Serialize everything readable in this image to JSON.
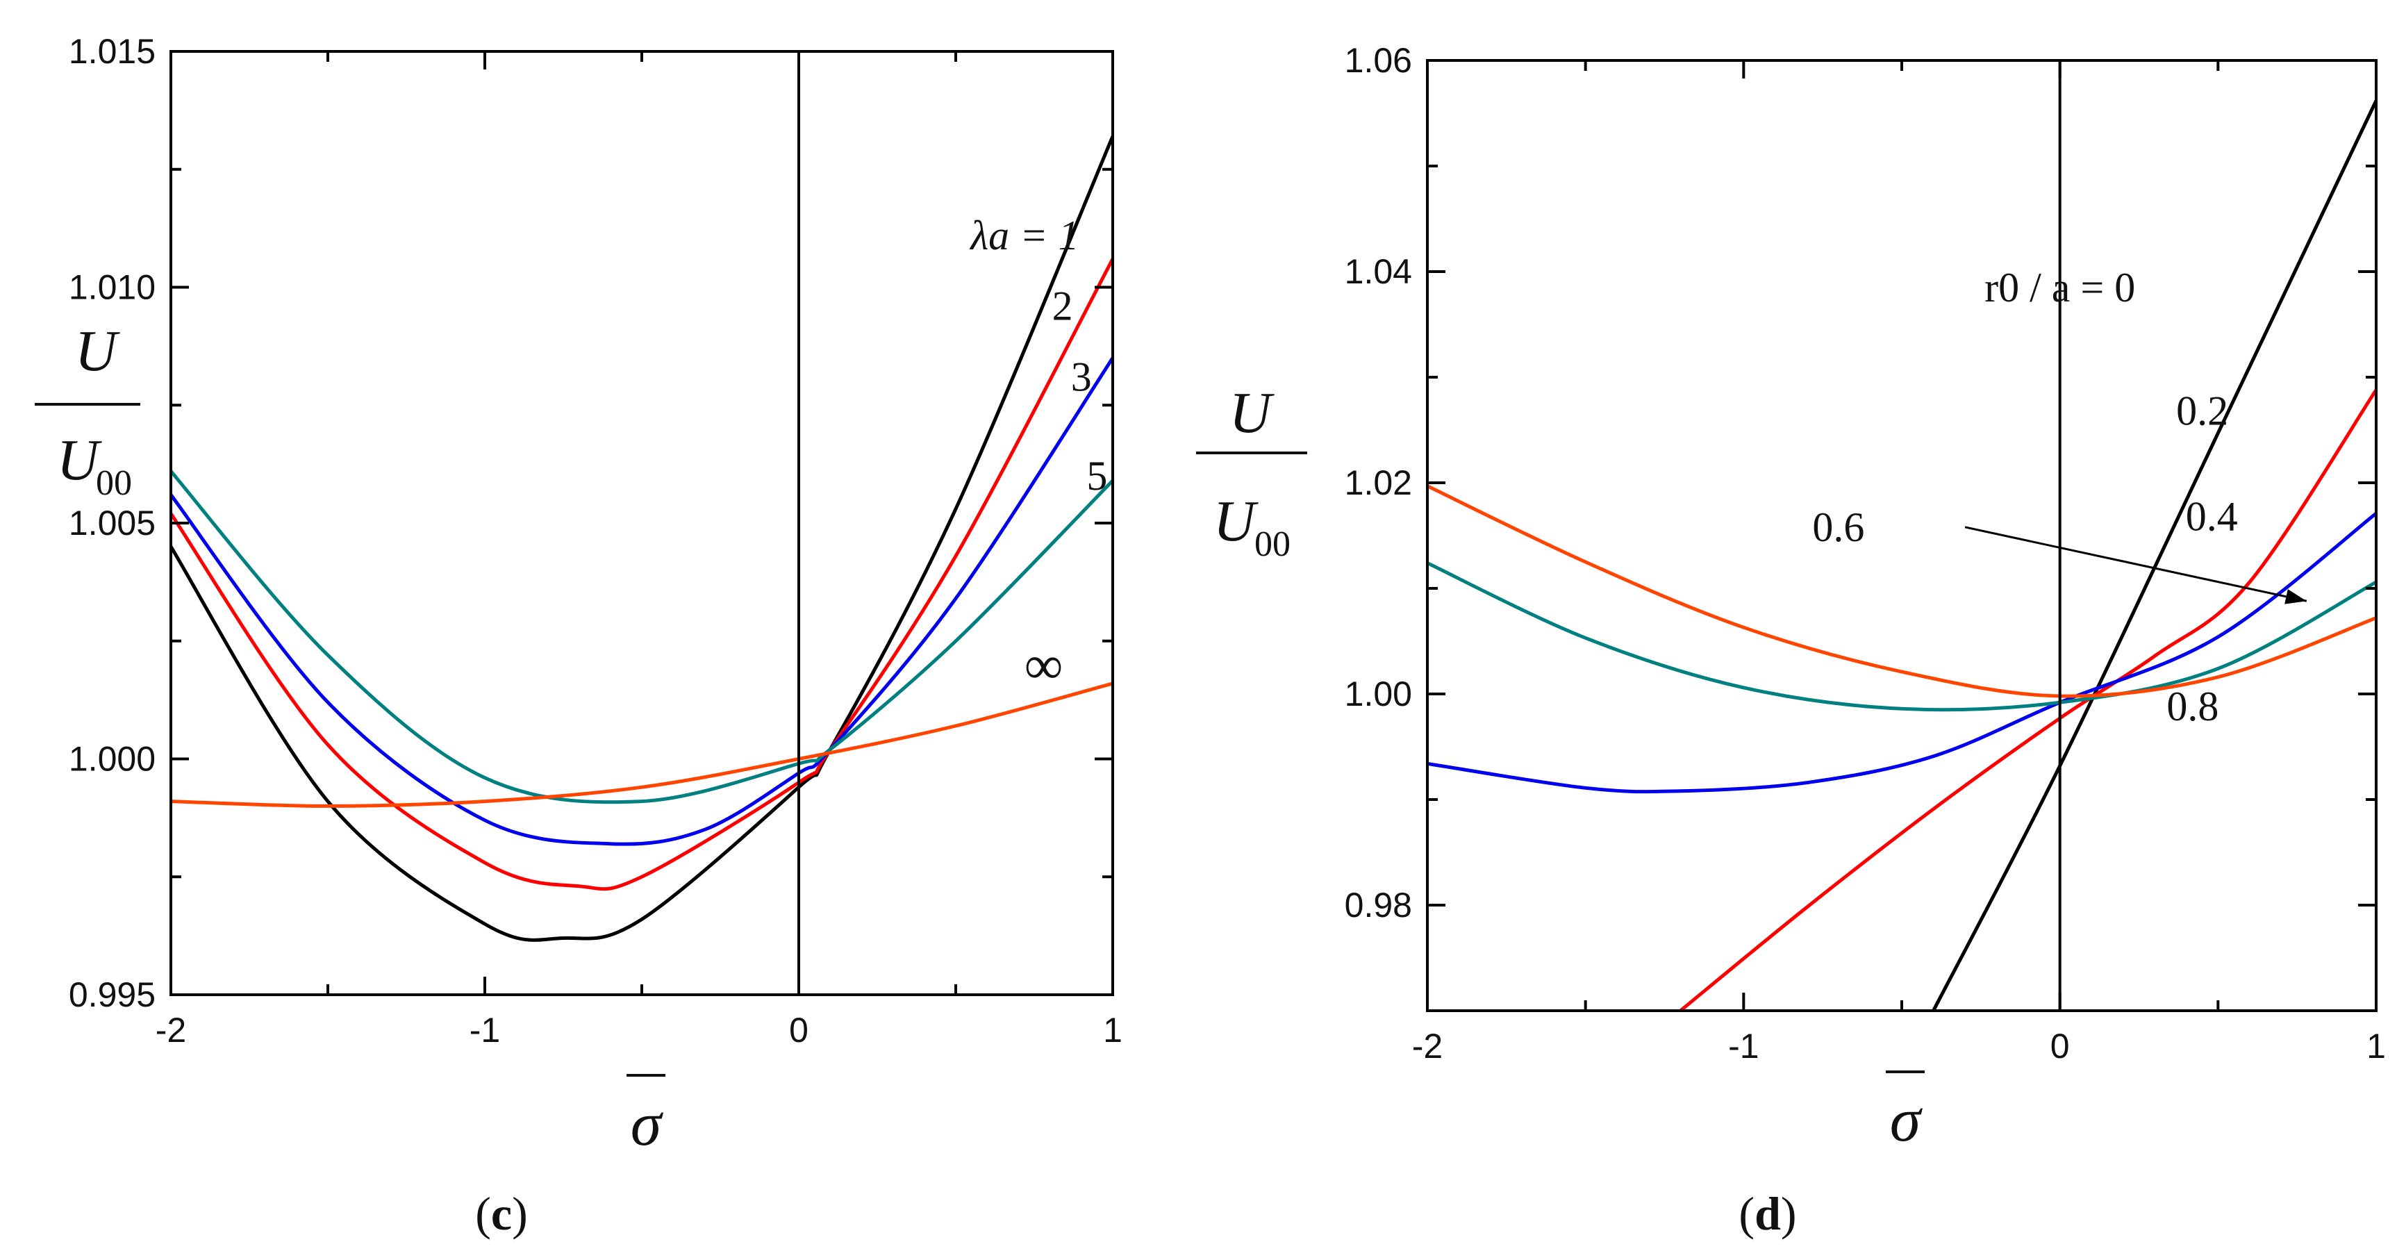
{
  "chart_data": [
    {
      "type": "line",
      "panel_label": "(c)",
      "panel_letter": "c",
      "ylabel_top": "U",
      "ylabel_bottom": "U",
      "ylabel_sub": "00",
      "xlabel": "σ",
      "xlim": [
        -2,
        1
      ],
      "ylim": [
        0.995,
        1.015
      ],
      "xticks": [
        -2,
        -1,
        0,
        1
      ],
      "xtick_labels": [
        "-2",
        "-1",
        "0",
        "1"
      ],
      "yticks": [
        0.995,
        1.0,
        1.005,
        1.01,
        1.015
      ],
      "ytick_labels": [
        "0.995",
        "1.000",
        "1.005",
        "1.010",
        "1.015"
      ],
      "series": [
        {
          "name": "λa = 1",
          "color": "#000000",
          "x": [
            -2.0,
            -1.5,
            -1.0,
            -0.75,
            -0.5,
            0.0,
            0.1,
            0.5,
            1.0
          ],
          "y": [
            1.0045,
            0.9991,
            0.9965,
            0.9962,
            0.9966,
            0.9994,
            1.0002,
            1.0053,
            1.0132
          ]
        },
        {
          "name": "2",
          "color": "#ff0000",
          "x": [
            -2.0,
            -1.5,
            -1.0,
            -0.7,
            -0.5,
            0.0,
            0.1,
            0.5,
            1.0
          ],
          "y": [
            1.0052,
            1.0003,
            0.9978,
            0.9973,
            0.9975,
            0.9995,
            1.0002,
            1.0043,
            1.0106
          ]
        },
        {
          "name": "3",
          "color": "#0000ee",
          "x": [
            -2.0,
            -1.5,
            -1.0,
            -0.6,
            -0.3,
            0.0,
            0.1,
            0.5,
            1.0
          ],
          "y": [
            1.0056,
            1.0012,
            0.9987,
            0.9982,
            0.9985,
            0.9997,
            1.0002,
            1.0034,
            1.0085
          ]
        },
        {
          "name": "5",
          "color": "#008080",
          "x": [
            -2.0,
            -1.5,
            -1.0,
            -0.5,
            0.0,
            0.1,
            0.5,
            1.0
          ],
          "y": [
            1.0061,
            1.0022,
            0.9996,
            0.9991,
            0.9999,
            1.0002,
            1.0025,
            1.0059
          ]
        },
        {
          "name": "∞",
          "color": "#ff4500",
          "x": [
            -2.0,
            -1.5,
            -1.0,
            -0.5,
            0.0,
            0.5,
            1.0
          ],
          "y": [
            0.9991,
            0.999,
            0.9991,
            0.9994,
            1.0,
            1.0007,
            1.0016
          ]
        }
      ],
      "annotations": [
        {
          "text": "λa = 1",
          "x": 0.72,
          "y": 1.0111
        },
        {
          "text": "2",
          "x": 0.84,
          "y": 1.0096
        },
        {
          "text": "3",
          "x": 0.9,
          "y": 1.0081
        },
        {
          "text": "5",
          "x": 0.95,
          "y": 1.006
        },
        {
          "text": "∞",
          "x": 0.78,
          "y": 1.0019
        }
      ]
    },
    {
      "type": "line",
      "panel_label": "(d)",
      "panel_letter": "d",
      "ylabel_top": "U",
      "ylabel_bottom": "U",
      "ylabel_sub": "00",
      "xlabel": "σ",
      "xlim": [
        -2,
        1
      ],
      "ylim": [
        0.97,
        1.06
      ],
      "xticks": [
        -2,
        -1,
        0,
        1
      ],
      "xtick_labels": [
        "-2",
        "-1",
        "0",
        "1"
      ],
      "yticks": [
        0.98,
        1.0,
        1.02,
        1.04,
        1.06
      ],
      "ytick_labels": [
        "0.98",
        "1.00",
        "1.02",
        "1.04",
        "1.06"
      ],
      "series": [
        {
          "name": "r0 / a = 0",
          "color": "#000000",
          "x": [
            -0.4,
            0.0,
            0.5,
            1.0
          ],
          "y": [
            0.97,
            0.9932,
            1.0247,
            1.0562
          ]
        },
        {
          "name": "0.2",
          "color": "#ff0000",
          "x": [
            -1.2,
            -0.8,
            -0.4,
            0.0,
            0.3,
            0.6,
            1.0
          ],
          "y": [
            0.97,
            0.9798,
            0.9891,
            0.9977,
            1.0036,
            1.0106,
            1.0288
          ]
        },
        {
          "name": "0.4",
          "color": "#0000ee",
          "x": [
            -2.0,
            -1.5,
            -1.2,
            -0.8,
            -0.4,
            0.0,
            0.5,
            1.0
          ],
          "y": [
            0.9934,
            0.9911,
            0.9908,
            0.9916,
            0.9941,
            0.9992,
            1.0054,
            1.0171
          ]
        },
        {
          "name": "0.6",
          "color": "#008080",
          "x": [
            -2.0,
            -1.5,
            -1.0,
            -0.5,
            0.0,
            0.5,
            1.0
          ],
          "y": [
            1.0124,
            1.0053,
            1.0006,
            0.9986,
            0.9992,
            1.0024,
            1.0106
          ]
        },
        {
          "name": "0.8",
          "color": "#ff4500",
          "x": [
            -2.0,
            -1.5,
            -1.0,
            -0.5,
            0.0,
            0.5,
            1.0
          ],
          "y": [
            1.0197,
            1.0125,
            1.0063,
            1.0021,
            0.9998,
            1.0016,
            1.0072
          ]
        }
      ],
      "annotations": [
        {
          "text": "r0 / a = 0",
          "x": 0.0,
          "y": 1.0385
        },
        {
          "text": "0.2",
          "x": 0.45,
          "y": 1.0268
        },
        {
          "text": "0.4",
          "x": 0.48,
          "y": 1.0168
        },
        {
          "text": "0.6",
          "x": -0.7,
          "y": 1.0158
        },
        {
          "text": "0.8",
          "x": 0.42,
          "y": 0.9988
        }
      ]
    }
  ]
}
